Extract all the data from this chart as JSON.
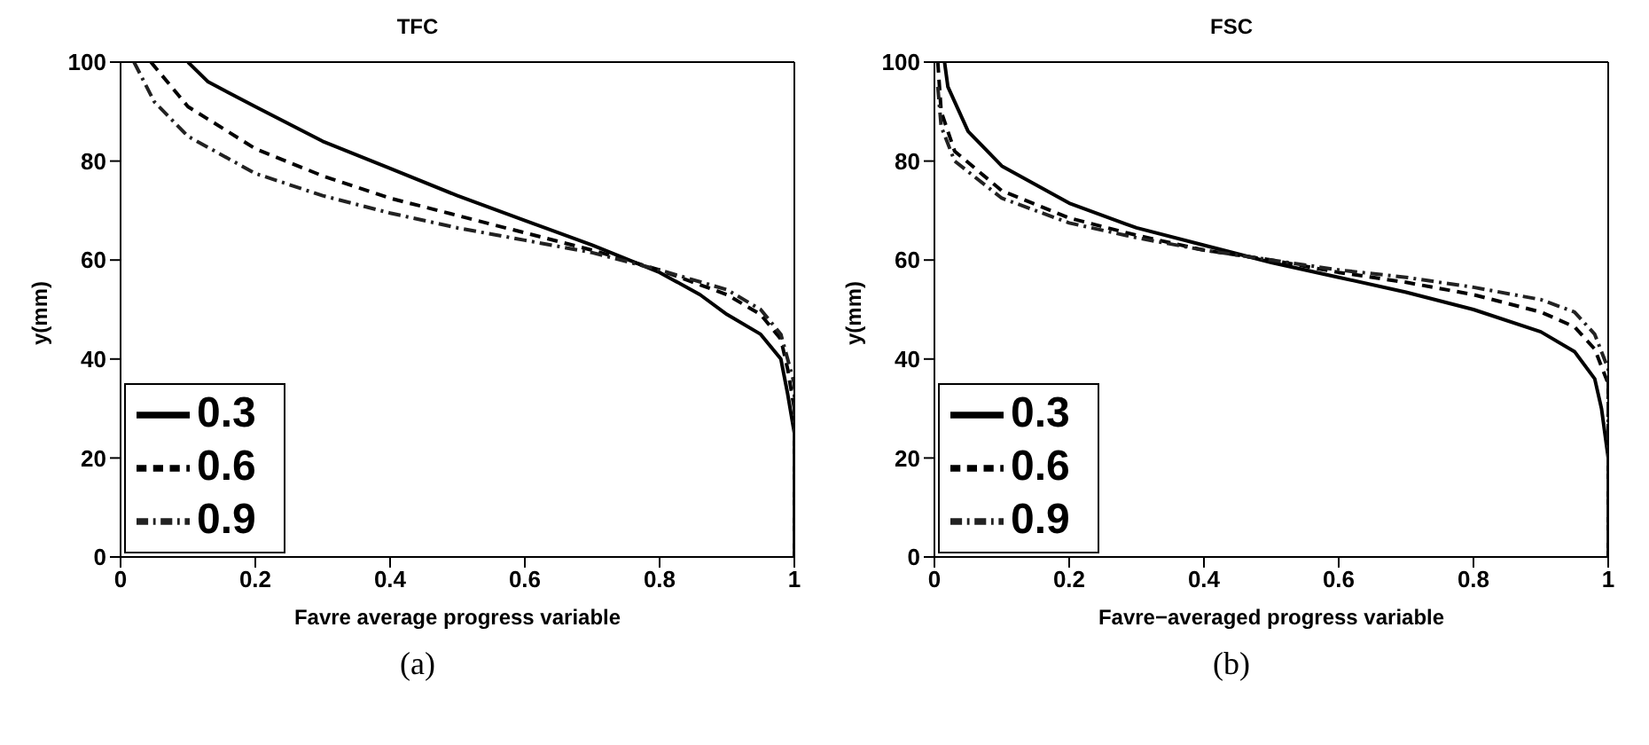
{
  "chart_data": [
    {
      "type": "line",
      "title": "TFC",
      "xlabel": "Favre average progress variable",
      "ylabel": "y(mm)",
      "annotations": [
        "(a)"
      ],
      "xlim": [
        0,
        1
      ],
      "ylim": [
        0,
        100
      ],
      "xticks": [
        0,
        0.2,
        0.4,
        0.6,
        0.8,
        1
      ],
      "yticks": [
        0,
        20,
        40,
        60,
        80,
        100
      ],
      "legend": "bottom left",
      "marker": "none",
      "series": [
        {
          "name": "0.3",
          "color": "#000000",
          "line_style": "solid",
          "x": [
            0.1,
            0.13,
            0.2,
            0.3,
            0.4,
            0.5,
            0.6,
            0.7,
            0.8,
            0.86,
            0.9,
            0.95,
            0.98,
            0.99,
            1,
            1
          ],
          "values": [
            100,
            96,
            91,
            84,
            78.5,
            73,
            68,
            63,
            57.5,
            53,
            49,
            45,
            40,
            33,
            25,
            0
          ]
        },
        {
          "name": "0.6",
          "color": "#000000",
          "line_style": "dashed",
          "x": [
            0.045,
            0.1,
            0.2,
            0.3,
            0.4,
            0.5,
            0.6,
            0.7,
            0.8,
            0.9,
            0.95,
            0.98,
            0.99,
            1,
            1
          ],
          "values": [
            100,
            91,
            82.5,
            77,
            72.5,
            69,
            65.5,
            62,
            58,
            53,
            49,
            44,
            38,
            30,
            0
          ]
        },
        {
          "name": "0.9",
          "color": "#222222",
          "line_style": "dotted",
          "x": [
            0.02,
            0.05,
            0.1,
            0.2,
            0.3,
            0.4,
            0.5,
            0.6,
            0.7,
            0.8,
            0.9,
            0.95,
            0.98,
            1,
            1
          ],
          "values": [
            100,
            92,
            85,
            77.5,
            73,
            69.5,
            66.5,
            64,
            61.5,
            58,
            54,
            50,
            45,
            35,
            0
          ]
        }
      ]
    },
    {
      "type": "line",
      "title": "FSC",
      "xlabel": "Favre−averaged progress variable",
      "ylabel": "y(mm)",
      "annotations": [
        "(b)"
      ],
      "xlim": [
        0,
        1
      ],
      "ylim": [
        0,
        100
      ],
      "xticks": [
        0,
        0.2,
        0.4,
        0.6,
        0.8,
        1
      ],
      "yticks": [
        0,
        20,
        40,
        60,
        80,
        100
      ],
      "legend": "bottom left",
      "marker": "none",
      "series": [
        {
          "name": "0.3",
          "color": "#000000",
          "line_style": "solid",
          "x": [
            0.015,
            0.02,
            0.05,
            0.1,
            0.2,
            0.3,
            0.4,
            0.5,
            0.6,
            0.7,
            0.8,
            0.9,
            0.95,
            0.98,
            0.99,
            1,
            1
          ],
          "values": [
            100,
            95,
            86,
            79,
            71.5,
            66.5,
            63,
            59.5,
            56.5,
            53.5,
            50,
            45.5,
            41.5,
            36,
            30,
            20,
            0
          ]
        },
        {
          "name": "0.6",
          "color": "#000000",
          "line_style": "dashed",
          "x": [
            0.005,
            0.01,
            0.03,
            0.1,
            0.2,
            0.3,
            0.4,
            0.5,
            0.6,
            0.7,
            0.8,
            0.9,
            0.95,
            0.98,
            1,
            1
          ],
          "values": [
            100,
            90,
            82,
            74,
            68.5,
            65,
            62,
            60,
            57.5,
            55.5,
            53,
            49.5,
            46.5,
            42,
            35,
            0
          ]
        },
        {
          "name": "0.9",
          "color": "#222222",
          "line_style": "dotted",
          "x": [
            0.005,
            0.01,
            0.03,
            0.1,
            0.2,
            0.3,
            0.4,
            0.5,
            0.6,
            0.7,
            0.8,
            0.9,
            0.95,
            0.98,
            1,
            1
          ],
          "values": [
            95,
            87,
            80,
            72.5,
            67.5,
            64.5,
            62,
            60,
            58,
            56.5,
            54.5,
            52,
            49.5,
            45,
            38,
            0
          ]
        }
      ]
    }
  ]
}
